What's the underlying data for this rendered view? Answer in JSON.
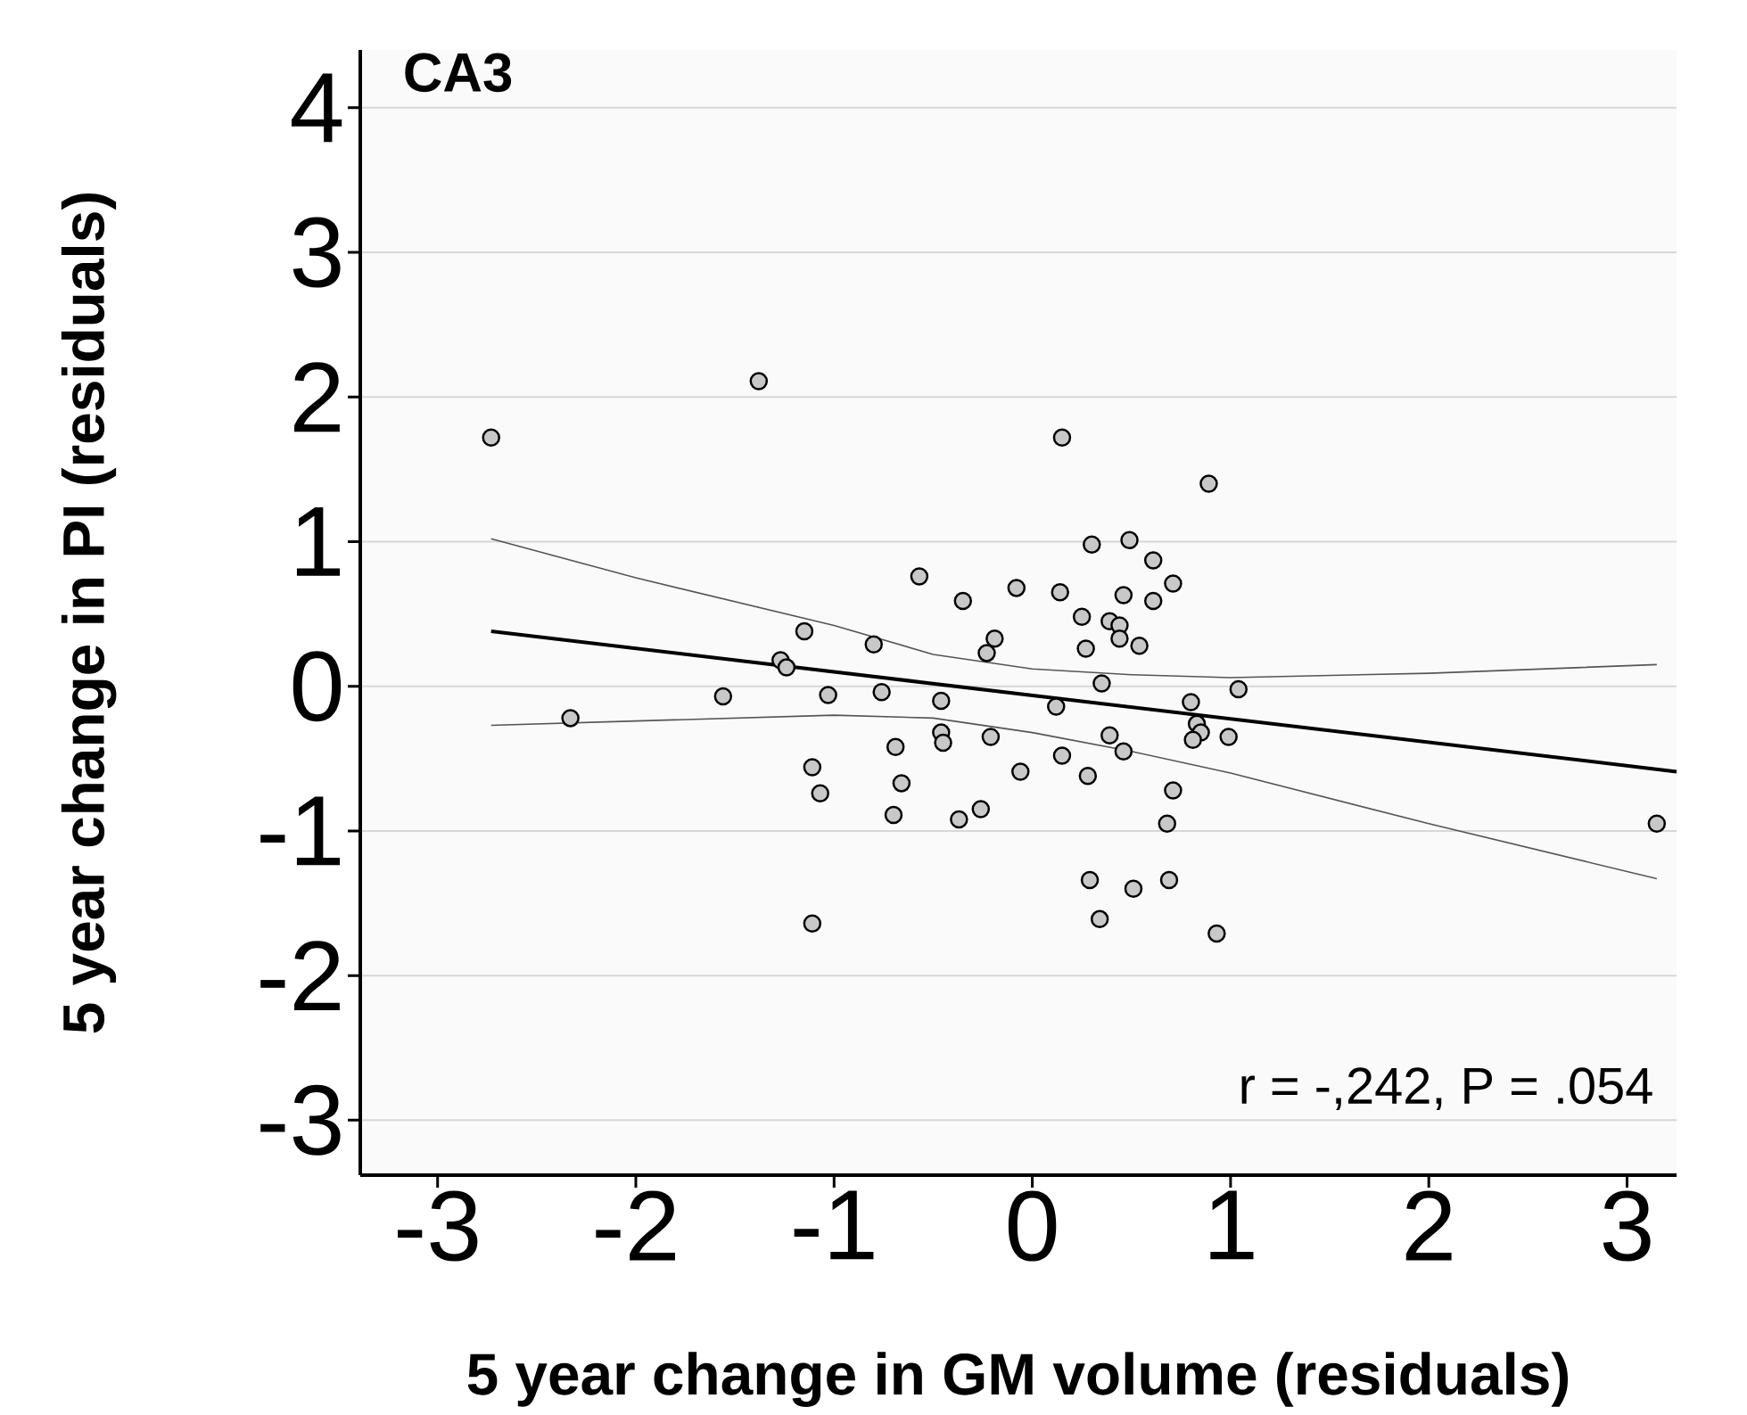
{
  "chart_data": {
    "type": "scatter",
    "title": "CA3",
    "xlabel": "5 year change in GM volume (residuals)",
    "ylabel": "5 year change in PI (residuals)",
    "annotations": [
      "r = -,242, P = .054"
    ],
    "xlim": [
      -3.39,
      3.25
    ],
    "ylim": [
      -3.38,
      4.4
    ],
    "xticks": [
      -3,
      -2,
      -1,
      0,
      1,
      2,
      3
    ],
    "yticks": [
      -3,
      -2,
      -1,
      0,
      1,
      2,
      3,
      4
    ],
    "grid": "y",
    "series": [
      {
        "type": "scatter",
        "color": "#c8c8c8",
        "x": [
          -2.73,
          -2.33,
          -1.38,
          -1.56,
          -1.27,
          -1.24,
          -1.15,
          -1.03,
          -1.11,
          -1.07,
          -1.11,
          -0.8,
          -0.76,
          -0.69,
          -0.66,
          -0.7,
          -0.57,
          -0.46,
          -0.46,
          -0.45,
          -0.35,
          -0.37,
          -0.26,
          -0.19,
          -0.23,
          -0.21,
          -0.08,
          -0.06,
          0.12,
          0.14,
          0.15,
          0.15,
          0.25,
          0.27,
          0.28,
          0.3,
          0.29,
          0.34,
          0.35,
          0.39,
          0.39,
          0.44,
          0.44,
          0.46,
          0.46,
          0.49,
          0.51,
          0.54,
          0.61,
          0.61,
          0.71,
          0.68,
          0.69,
          0.71,
          0.8,
          0.83,
          0.85,
          0.81,
          0.89,
          0.93,
          0.99,
          1.04,
          3.15
        ],
        "values": [
          1.72,
          -0.22,
          2.11,
          -0.07,
          0.18,
          0.13,
          0.38,
          -0.06,
          -0.56,
          -0.74,
          -1.64,
          0.29,
          -0.04,
          -0.42,
          -0.67,
          -0.89,
          0.76,
          -0.1,
          -0.32,
          -0.39,
          0.59,
          -0.92,
          -0.85,
          0.33,
          0.23,
          -0.35,
          0.68,
          -0.59,
          -0.14,
          0.65,
          1.72,
          -0.48,
          0.48,
          0.26,
          -0.62,
          0.98,
          -1.34,
          -1.61,
          0.02,
          0.45,
          -0.34,
          0.42,
          0.33,
          0.63,
          -0.45,
          1.01,
          -1.4,
          0.28,
          0.59,
          0.87,
          0.71,
          -0.95,
          -1.34,
          -0.72,
          -0.11,
          -0.26,
          -0.32,
          -0.37,
          1.4,
          -1.71,
          -0.35,
          -0.02,
          -0.95
        ]
      },
      {
        "type": "line",
        "color": "#000000",
        "x": [
          -2.73,
          3.25
        ],
        "values": [
          0.38,
          -0.59
        ]
      },
      {
        "type": "line",
        "color": "#555555",
        "x": [
          -2.73,
          -2,
          -1,
          -0.5,
          0,
          0.5,
          1,
          2,
          3.15
        ],
        "values": [
          1.02,
          0.75,
          0.42,
          0.22,
          0.12,
          0.08,
          0.06,
          0.09,
          0.15
        ]
      },
      {
        "type": "line",
        "color": "#555555",
        "x": [
          -2.73,
          -2,
          -1,
          -0.5,
          0,
          0.5,
          1,
          2,
          3.15
        ],
        "values": [
          -0.27,
          -0.24,
          -0.2,
          -0.22,
          -0.32,
          -0.45,
          -0.6,
          -0.95,
          -1.33
        ]
      }
    ]
  }
}
